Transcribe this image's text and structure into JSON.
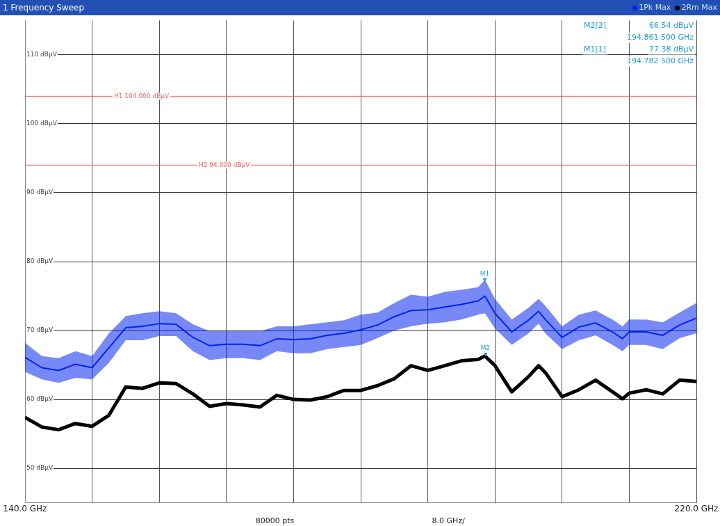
{
  "chart_data": {
    "type": "line",
    "title": "1 Frequency Sweep",
    "legend": "top right",
    "grid": true,
    "marker": "none",
    "x": [
      140,
      142,
      144,
      146,
      148,
      150,
      152,
      154,
      156,
      158,
      160,
      162,
      164,
      166,
      168,
      170,
      172,
      174,
      176,
      178,
      180,
      182,
      184,
      186,
      188,
      190,
      192,
      194,
      194.8,
      196,
      198,
      200,
      201.2,
      202,
      204,
      206,
      208,
      210,
      211.2,
      212,
      214,
      216,
      218,
      220
    ],
    "xlim": [
      140,
      220
    ],
    "xticks": [
      {
        "value": 140,
        "label": "140.0 GHz"
      },
      {
        "value": 148,
        "label": null
      },
      {
        "value": 156,
        "label": null
      },
      {
        "value": 164,
        "label": null
      },
      {
        "value": 172,
        "label": null
      },
      {
        "value": 180,
        "label": null
      },
      {
        "value": 188,
        "label": null
      },
      {
        "value": 196,
        "label": null
      },
      {
        "value": 204,
        "label": null
      },
      {
        "value": 212,
        "label": null
      },
      {
        "value": 220,
        "label": "220.0 GHz"
      }
    ],
    "ylim": [
      45,
      115
    ],
    "yticks": [
      {
        "value": 50,
        "label": "50 dBµV"
      },
      {
        "value": 60,
        "label": "60 dBµV"
      },
      {
        "value": 70,
        "label": "70 dBµV"
      },
      {
        "value": 80,
        "label": "80 dBµV"
      },
      {
        "value": 90,
        "label": "90 dBµV"
      },
      {
        "value": 100,
        "label": "100 dBµV"
      },
      {
        "value": 110,
        "label": "110 dBµV"
      }
    ],
    "series": [
      {
        "name": "1Pk Max",
        "color": "#0022ee",
        "values": [
          66.1,
          64.6,
          64.2,
          65.1,
          64.6,
          67.5,
          70.4,
          70.6,
          71.0,
          70.9,
          69.0,
          67.8,
          68.0,
          68.0,
          67.8,
          68.8,
          68.7,
          68.8,
          69.3,
          69.6,
          70.1,
          70.8,
          72.0,
          72.9,
          73.0,
          73.4,
          73.8,
          74.3,
          75.0,
          72.5,
          69.8,
          71.5,
          72.8,
          71.6,
          69.0,
          70.5,
          71.1,
          69.8,
          68.8,
          69.8,
          69.8,
          69.3,
          70.8,
          71.8
        ],
        "lower": [
          64.0,
          62.9,
          62.4,
          63.1,
          62.9,
          65.3,
          68.6,
          68.6,
          69.2,
          69.2,
          67.0,
          65.7,
          66.0,
          66.0,
          65.7,
          67.0,
          66.7,
          66.7,
          67.3,
          67.6,
          67.9,
          68.9,
          70.0,
          70.6,
          71.0,
          71.2,
          71.6,
          72.3,
          72.5,
          70.3,
          67.9,
          69.6,
          71.0,
          69.6,
          67.3,
          68.6,
          69.3,
          67.9,
          67.0,
          67.9,
          67.9,
          67.3,
          68.9,
          69.6
        ],
        "upper": [
          68.2,
          66.3,
          66.0,
          67.0,
          66.3,
          69.6,
          72.1,
          72.5,
          72.8,
          72.5,
          70.9,
          69.9,
          69.9,
          69.9,
          69.9,
          70.6,
          70.6,
          70.9,
          71.2,
          71.5,
          72.3,
          72.6,
          74.0,
          75.2,
          74.9,
          75.6,
          75.9,
          76.3,
          77.38,
          74.6,
          71.6,
          73.3,
          74.6,
          73.6,
          70.6,
          72.3,
          72.9,
          71.6,
          70.6,
          71.6,
          71.6,
          71.2,
          72.6,
          74.0
        ]
      },
      {
        "name": "2Rm Max",
        "color": "#000000",
        "values": [
          57.4,
          56.0,
          55.6,
          56.5,
          56.1,
          57.7,
          61.8,
          61.6,
          62.4,
          62.3,
          60.8,
          59.0,
          59.4,
          59.2,
          58.9,
          60.6,
          60.0,
          59.9,
          60.4,
          61.3,
          61.3,
          62.0,
          63.0,
          64.9,
          64.2,
          64.9,
          65.6,
          65.8,
          66.3,
          64.9,
          61.1,
          63.3,
          64.9,
          63.9,
          60.4,
          61.4,
          62.8,
          61.1,
          60.1,
          60.9,
          61.4,
          60.8,
          62.8,
          62.6
        ]
      }
    ],
    "ref_lines": [
      {
        "axis": "y",
        "value": 104,
        "label": "H1 104.000 dBµV",
        "color": "#ff5a5a"
      },
      {
        "axis": "y",
        "value": 94,
        "label": "H2 94.000 dBµV",
        "color": "#ff5a5a"
      }
    ],
    "annotations": [
      {
        "text": "M1",
        "x": 194.7825,
        "y": 77.38
      },
      {
        "text": "M2",
        "x": 194.8615,
        "y": 66.54
      },
      "M2[2]",
      "66.54 dBµV",
      "194.861 500 GHz",
      "M1[1]",
      "77.38 dBµV",
      "194.782 500 GHz",
      "80000 pts",
      "8.0 GHz/"
    ]
  }
}
